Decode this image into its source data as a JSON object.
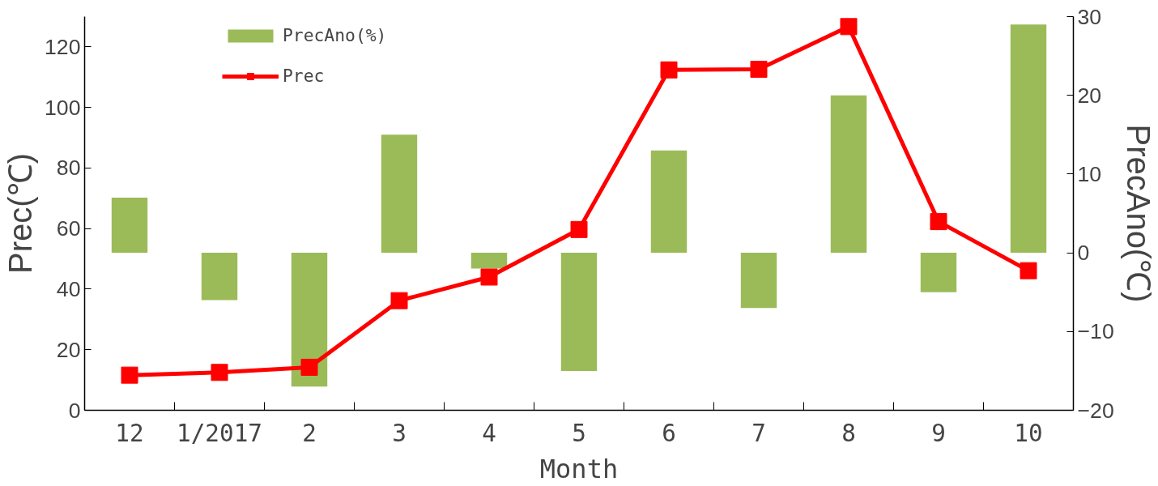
{
  "chart_data": {
    "type": "bar",
    "xlabel": "Month",
    "ylabel": "Prec(℃)",
    "y2label": "PrecAno(℃)",
    "categories": [
      "12",
      "1/2017",
      "2",
      "3",
      "4",
      "5",
      "6",
      "7",
      "8",
      "9",
      "10"
    ],
    "series": [
      {
        "name": "PrecAno(%)",
        "axis": "y2",
        "color": "#9bbb59",
        "values": [
          7,
          -6,
          -17,
          15,
          -2,
          -15,
          13,
          -7,
          20,
          -5,
          29
        ]
      },
      {
        "name": "Prec",
        "type": "line",
        "color": "#ff0000",
        "marker": "square",
        "values": [
          11.6,
          12.5,
          14.2,
          36.2,
          44,
          59.7,
          112.4,
          112.6,
          126.7,
          62.3,
          46.1
        ]
      }
    ],
    "ylim": [
      0,
      130
    ],
    "yticks": [
      0,
      20,
      40,
      60,
      80,
      100,
      120
    ],
    "y2lim": [
      -20,
      30
    ],
    "y2ticks": [
      -20,
      -10,
      0,
      10,
      20,
      30
    ],
    "grid": false,
    "legend": "top left"
  }
}
